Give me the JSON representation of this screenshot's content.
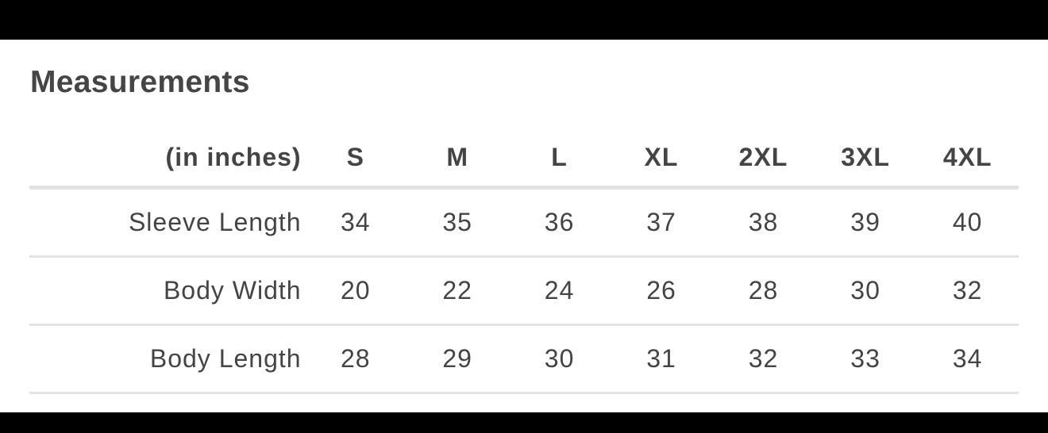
{
  "title": "Measurements",
  "table": {
    "unit_label": "(in inches)",
    "sizes": [
      "S",
      "M",
      "L",
      "XL",
      "2XL",
      "3XL",
      "4XL"
    ],
    "rows": [
      {
        "label": "Sleeve Length",
        "values": [
          "34",
          "35",
          "36",
          "37",
          "38",
          "39",
          "40"
        ]
      },
      {
        "label": "Body Width",
        "values": [
          "20",
          "22",
          "24",
          "26",
          "28",
          "30",
          "32"
        ]
      },
      {
        "label": "Body Length",
        "values": [
          "28",
          "29",
          "30",
          "31",
          "32",
          "33",
          "34"
        ]
      }
    ]
  }
}
